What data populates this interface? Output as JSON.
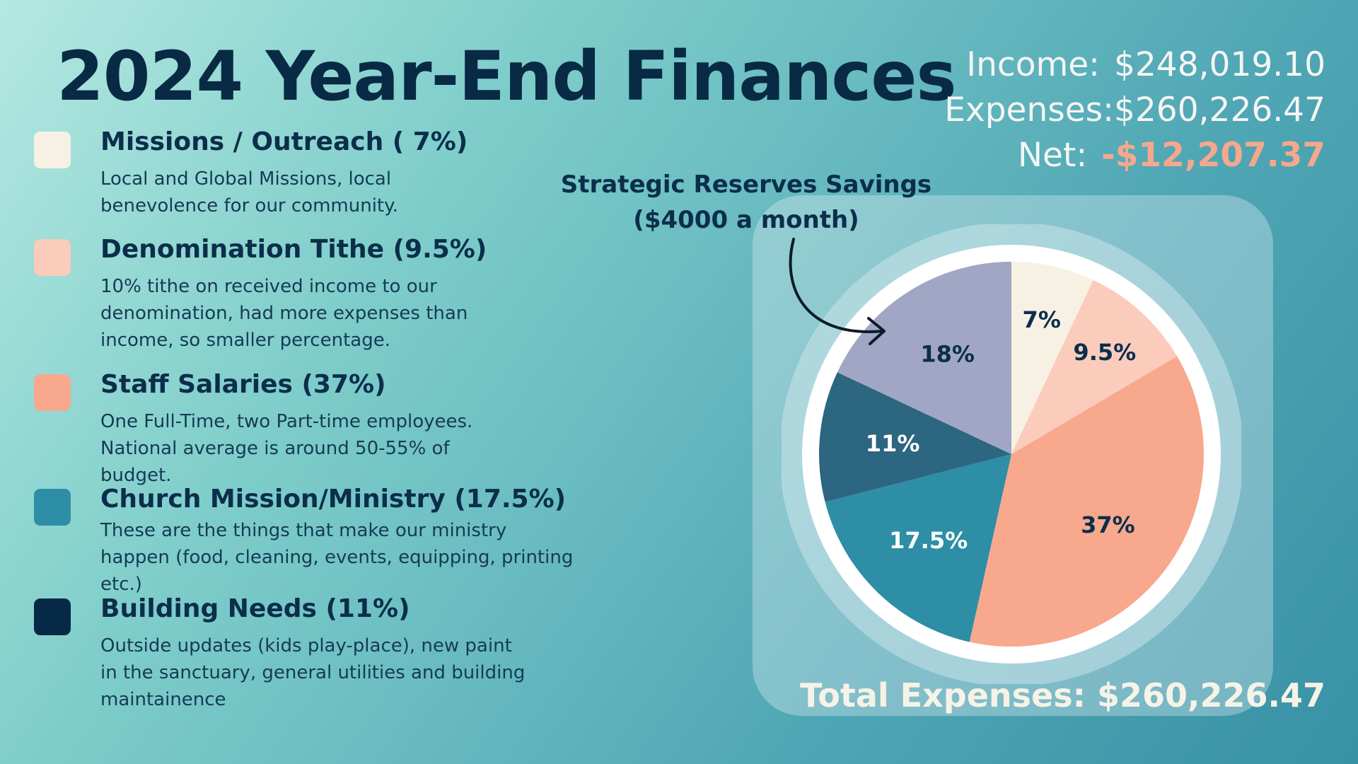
{
  "title": "2024 Year-End Finances",
  "summary": {
    "income_label": "Income:",
    "income_value": "$248,019.10",
    "expenses_label": "Expenses:",
    "expenses_value": "$260,226.47",
    "net_label": "Net:",
    "net_value": "-$12,207.37"
  },
  "legend": [
    {
      "heading": "Missions / Outreach ( 7%)",
      "description": "Local and Global Missions, local benevolence for our community.",
      "color": "#f7f1e4"
    },
    {
      "heading": "Denomination Tithe (9.5%)",
      "description": "10% tithe on received income to our denomination, had more expenses than income, so smaller percentage.",
      "color": "#fbcbbb"
    },
    {
      "heading": "Staff Salaries (37%)",
      "description": "One Full-Time, two Part-time employees. National average is around 50-55% of budget.",
      "color": "#f8a88d"
    },
    {
      "heading": "Church Mission/Ministry (17.5%)",
      "description": "These are the things that make our ministry happen (food, cleaning, events, equipping, printing etc.)",
      "color": "#2d8ea6"
    },
    {
      "heading": "Building Needs (11%)",
      "description": "Outside updates (kids play-place), new paint in the sanctuary, general utilities and building maintainence",
      "color": "#062a45"
    }
  ],
  "annotation": {
    "line1": "Strategic Reserves Savings",
    "line2": "($4000 a month)"
  },
  "total": "Total Expenses: $260,226.47",
  "chart_data": {
    "type": "pie",
    "categories": [
      "Missions / Outreach",
      "Denomination Tithe",
      "Staff Salaries",
      "Church Mission/Ministry",
      "Building Needs",
      "Strategic Reserves Savings"
    ],
    "values": [
      7,
      9.5,
      37,
      17.5,
      11,
      18
    ],
    "labels": [
      "7%",
      "9.5%",
      "37%",
      "17.5%",
      "11%",
      "18%"
    ],
    "colors": [
      "#f7f1e4",
      "#fbcbbb",
      "#f8a88d",
      "#2d8ea6",
      "#2c6680",
      "#a0a6c3"
    ],
    "label_colors": [
      "#0b2e4b",
      "#0b2e4b",
      "#0b2e4b",
      "#ffffff",
      "#ffffff",
      "#0b2e4b"
    ]
  }
}
